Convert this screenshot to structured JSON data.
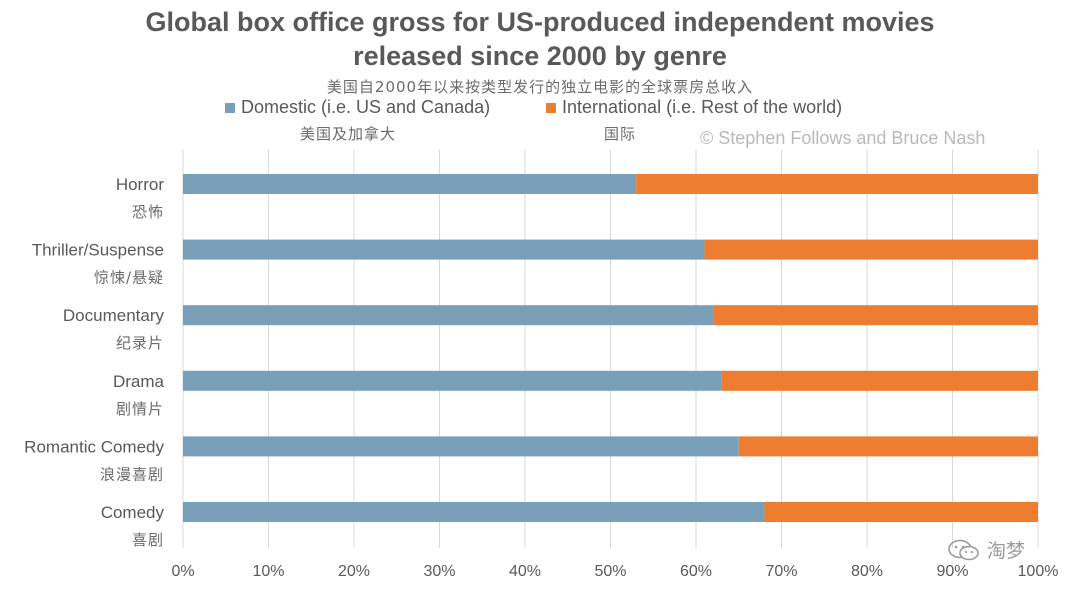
{
  "chart_data": {
    "type": "bar",
    "orientation": "horizontal",
    "stacked": true,
    "title_line1": "Global box office gross for US-produced independent movies",
    "title_line2": "released since 2000 by genre",
    "subtitle_cn": "美国自2000年以来按类型发行的独立电影的全球票房总收入",
    "categories": [
      "Horror",
      "Thriller/Suspense",
      "Documentary",
      "Drama",
      "Romantic Comedy",
      "Comedy"
    ],
    "categories_cn": [
      "恐怖",
      "惊悚/悬疑",
      "纪录片",
      "剧情片",
      "浪漫喜剧",
      "喜剧"
    ],
    "series": [
      {
        "name": "Domestic (i.e. US and Canada)",
        "name_cn": "美国及加拿大",
        "color": "#7a9fb8",
        "values": [
          53,
          61,
          62,
          63,
          65,
          68
        ]
      },
      {
        "name": "International (i.e. Rest of the world)",
        "name_cn": "国际",
        "color": "#ed7d31",
        "values": [
          47,
          39,
          38,
          37,
          35,
          32
        ]
      }
    ],
    "xlim": [
      0,
      100
    ],
    "xticks": [
      "0%",
      "10%",
      "20%",
      "30%",
      "40%",
      "50%",
      "60%",
      "70%",
      "80%",
      "90%",
      "100%"
    ],
    "grid": true,
    "legend_position": "top"
  },
  "copyright": "© Stephen Follows and Bruce Nash",
  "watermark": "淘梦",
  "colors": {
    "domestic": "#7a9fb8",
    "international": "#ed7d31",
    "grid": "#d9d9d9"
  }
}
